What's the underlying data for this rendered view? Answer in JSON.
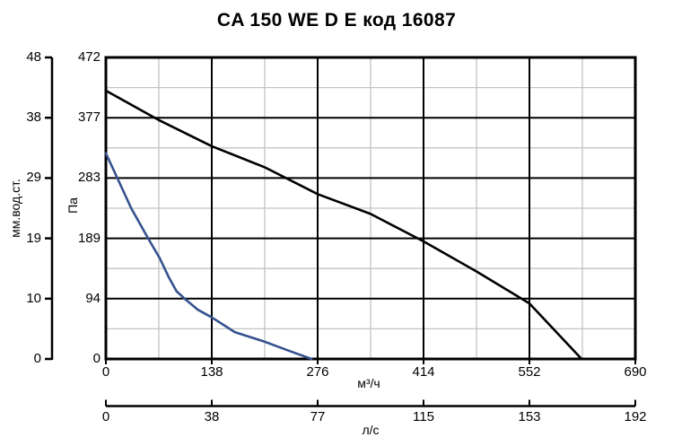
{
  "title": "CA 150 WE D E код 16087",
  "colors": {
    "background": "#ffffff",
    "curve_black": "#000000",
    "curve_blue": "#35528f",
    "grid_major": "#000000",
    "grid_minor": "#c3c3c3",
    "text": "#000000"
  },
  "chart_data": {
    "type": "line",
    "title": "CA 150 WE D E код 16087",
    "grid": {
      "major": "on",
      "minor": "midpoints between majors"
    },
    "legend": "none",
    "x_axis_primary": {
      "unit": "м³/ч",
      "ticks": [
        0,
        138,
        276,
        414,
        552,
        690
      ],
      "range": [
        0,
        690
      ]
    },
    "x_axis_secondary": {
      "unit": "л/с",
      "ticks": [
        0,
        38,
        77,
        115,
        153,
        192
      ],
      "range": [
        0,
        192
      ]
    },
    "y_axis_primary": {
      "unit": "Па",
      "ticks": [
        0,
        94,
        189,
        283,
        377,
        472
      ],
      "range": [
        0,
        472
      ]
    },
    "y_axis_secondary": {
      "unit": "мм.вод.ст.",
      "ticks": [
        0,
        10,
        19,
        29,
        38,
        48
      ],
      "range": [
        0,
        48
      ]
    },
    "series": [
      {
        "name": "pressure-curve-black",
        "color": "#000000",
        "points_m3h_pa": [
          [
            0,
            420
          ],
          [
            69,
            374
          ],
          [
            138,
            333
          ],
          [
            207,
            300
          ],
          [
            276,
            258
          ],
          [
            345,
            227
          ],
          [
            414,
            184
          ],
          [
            483,
            137
          ],
          [
            552,
            87
          ],
          [
            620,
            0
          ]
        ]
      },
      {
        "name": "pressure-curve-blue",
        "color": "#35528f",
        "points_m3h_pa": [
          [
            0,
            322
          ],
          [
            15,
            283
          ],
          [
            33,
            236
          ],
          [
            55,
            189
          ],
          [
            70,
            158
          ],
          [
            82,
            128
          ],
          [
            92,
            106
          ],
          [
            103,
            94
          ],
          [
            120,
            77
          ],
          [
            138,
            65
          ],
          [
            168,
            42
          ],
          [
            207,
            27
          ],
          [
            238,
            13
          ],
          [
            268,
            0
          ]
        ]
      }
    ]
  }
}
